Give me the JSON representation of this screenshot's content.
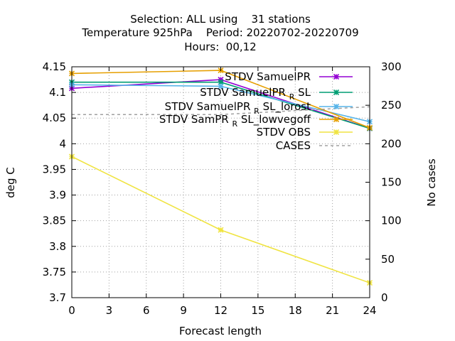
{
  "chart_data": {
    "type": "line",
    "title_lines": [
      "Selection: ALL using    31 stations",
      "Temperature 925hPa    Period: 20220702-20220709",
      "Hours:  00,12"
    ],
    "xlabel": "Forecast length",
    "ylabel": "deg C",
    "y2label": "No cases",
    "xlim": [
      0,
      24
    ],
    "ylim": [
      3.7,
      4.15
    ],
    "y2lim": [
      0,
      300
    ],
    "x_ticks": [
      0,
      3,
      6,
      9,
      12,
      15,
      18,
      21,
      24
    ],
    "y_ticks": [
      "3.7",
      "3.75",
      "3.8",
      "3.85",
      "3.9",
      "3.95",
      "4",
      "4.05",
      "4.1",
      "4.15"
    ],
    "y2_ticks": [
      0,
      50,
      100,
      150,
      200,
      250,
      300
    ],
    "grid": true,
    "legend_position": "top-right",
    "series": [
      {
        "legend": {
          "main": "STDV SamuelPR",
          "sub": "",
          "tail": ""
        },
        "color": "#9400d3",
        "marker": "x",
        "axis": "y",
        "x": [
          0,
          12,
          24
        ],
        "values": [
          4.108,
          4.125,
          4.03
        ]
      },
      {
        "legend": {
          "main": "STDV SamuelPR",
          "sub": "R",
          "tail": "SL"
        },
        "color": "#009e73",
        "marker": "x",
        "axis": "y",
        "x": [
          0,
          12,
          24
        ],
        "values": [
          4.12,
          4.12,
          4.03
        ]
      },
      {
        "legend": {
          "main": "STDV SamuelPR",
          "sub": "R",
          "tail": "SL_lorost"
        },
        "color": "#56b4e9",
        "marker": "x",
        "axis": "y",
        "x": [
          0,
          12,
          24
        ],
        "values": [
          4.115,
          4.112,
          4.043
        ]
      },
      {
        "legend": {
          "main": "STDV SamPR",
          "sub": "R",
          "tail": "SL_lowvegoff"
        },
        "color": "#e69f00",
        "marker": "x",
        "axis": "y",
        "x": [
          0,
          12,
          24
        ],
        "values": [
          4.137,
          4.143,
          4.031
        ]
      },
      {
        "legend": {
          "main": "STDV OBS",
          "sub": "",
          "tail": ""
        },
        "color": "#f0e442",
        "marker": "x",
        "axis": "y",
        "x": [
          0,
          12,
          24
        ],
        "values": [
          3.975,
          3.832,
          3.729
        ]
      },
      {
        "legend": {
          "main": "CASES",
          "sub": "",
          "tail": ""
        },
        "color": "#a0a0a0",
        "marker": "none",
        "dashed": true,
        "axis": "y2",
        "x": [
          0,
          12,
          24
        ],
        "values": [
          238,
          238,
          248
        ]
      }
    ]
  }
}
